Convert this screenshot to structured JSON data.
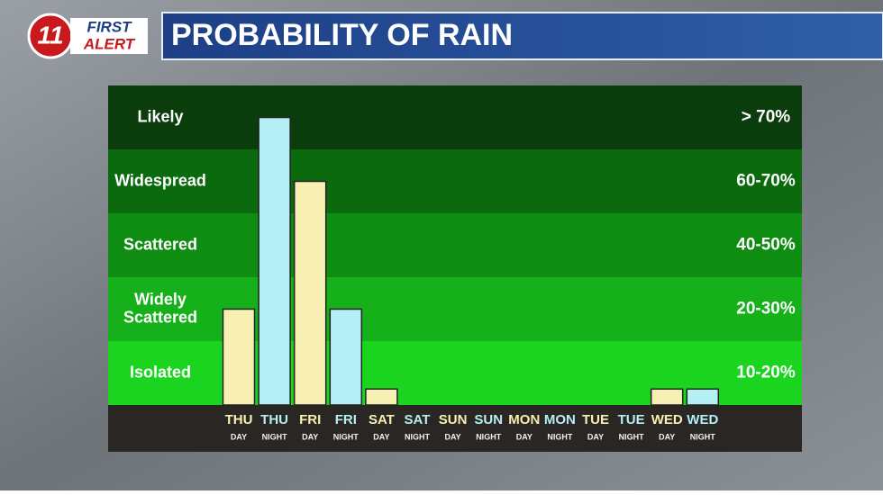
{
  "header": {
    "logo_number": "11",
    "logo_top": "FIRST",
    "logo_bottom": "ALERT",
    "title": "PROBABILITY OF RAIN"
  },
  "chart_data": {
    "type": "bar",
    "bands": [
      {
        "label": "Isolated",
        "range": "10-20%",
        "color": "#1bd41f"
      },
      {
        "label": "Widely Scattered",
        "range": "20-30%",
        "color": "#16b01a"
      },
      {
        "label": "Scattered",
        "range": "40-50%",
        "color": "#0f8c12"
      },
      {
        "label": "Widespread",
        "range": "60-70%",
        "color": "#0b6a0e"
      },
      {
        "label": "Likely",
        "range": "> 70%",
        "color": "#0a3d0b"
      }
    ],
    "categories": [
      "THU",
      "THU",
      "FRI",
      "FRI",
      "SAT",
      "SAT",
      "SUN",
      "SUN",
      "MON",
      "MON",
      "TUE",
      "TUE",
      "WED",
      "WED"
    ],
    "periods": [
      "DAY",
      "NIGHT",
      "DAY",
      "NIGHT",
      "DAY",
      "NIGHT",
      "DAY",
      "NIGHT",
      "DAY",
      "NIGHT",
      "DAY",
      "NIGHT",
      "DAY",
      "NIGHT"
    ],
    "values": [
      1.5,
      4.5,
      3.5,
      1.5,
      0.25,
      0,
      0,
      0,
      0,
      0,
      0,
      0,
      0.25,
      0.25
    ],
    "period_colors": {
      "DAY": "#f8f0b2",
      "NIGHT": "#b3eff4"
    },
    "ylim": [
      0,
      5
    ]
  }
}
